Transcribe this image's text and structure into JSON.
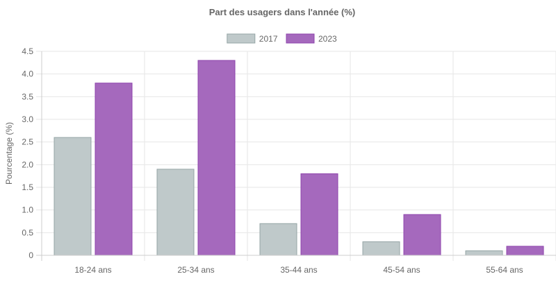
{
  "chart_data": {
    "type": "bar",
    "title": "Part des usagers dans l'année (%)",
    "xlabel": "",
    "ylabel": "Pourcentage (%)",
    "categories": [
      "18-24 ans",
      "25-34 ans",
      "35-44 ans",
      "45-54 ans",
      "55-64 ans"
    ],
    "series": [
      {
        "name": "2017",
        "values": [
          2.6,
          1.9,
          0.7,
          0.3,
          0.1
        ],
        "color": "#bfc9ca",
        "border": "#95a5a6"
      },
      {
        "name": "2023",
        "values": [
          3.8,
          4.3,
          1.8,
          0.9,
          0.2
        ],
        "color": "#a569bd",
        "border": "#8e44ad"
      }
    ],
    "ylim": [
      0,
      4.5
    ],
    "yticks": [
      "0",
      "0.5",
      "1.0",
      "1.5",
      "2.0",
      "2.5",
      "3.0",
      "3.5",
      "4.0",
      "4.5"
    ],
    "grid": true,
    "legend": "top-center"
  }
}
